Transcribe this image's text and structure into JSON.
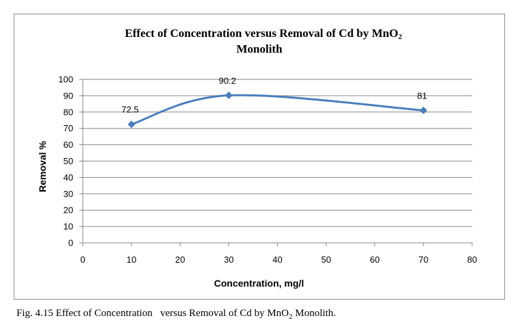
{
  "chart_data": {
    "type": "line",
    "title_line1": "Effect of Concentration  versus Removal  of  Cd by MnO",
    "title_sub": "2",
    "title_line2": "Monolith",
    "xlabel": "Concentration, mg/l",
    "ylabel": "Removal %",
    "xlim": [
      0,
      80
    ],
    "ylim": [
      0,
      100
    ],
    "xticks": [
      0,
      10,
      20,
      30,
      40,
      50,
      60,
      70,
      80
    ],
    "yticks": [
      0,
      10,
      20,
      30,
      40,
      50,
      60,
      70,
      80,
      90,
      100
    ],
    "grid": true,
    "series": [
      {
        "name": "Removal %",
        "x": [
          10,
          30,
          70
        ],
        "values": [
          72.5,
          90.2,
          81
        ],
        "labels": [
          "72.5",
          "90.2",
          "81"
        ],
        "color": "#4a7ebb",
        "marker": "diamond",
        "smooth": true
      }
    ]
  },
  "caption": {
    "prefix": "Fig. 4.15 Effect of Concentration   versus Removal of Cd by MnO",
    "sub": "2",
    "suffix": " Monolith."
  },
  "colors": {
    "gridline": "#868686",
    "axis": "#868686",
    "frame": "#8c8c8c"
  }
}
